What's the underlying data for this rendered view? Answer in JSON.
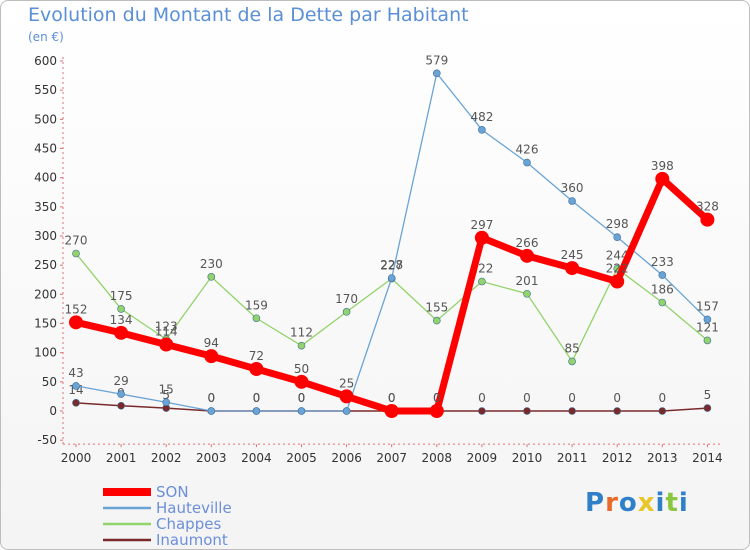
{
  "title": "Evolution du Montant de la Dette par Habitant",
  "unit": "(en €)",
  "logo": {
    "text": "Proxiti",
    "colors": [
      "#2f80c8",
      "#e86a2a",
      "#2f80c8",
      "#e8c62a",
      "#2f80c8",
      "#8ac640",
      "#2f80c8"
    ]
  },
  "chart_data": {
    "type": "line",
    "title": "Evolution du Montant de la Dette par Habitant",
    "ylabel": "(en €)",
    "xlabel": "",
    "x": [
      "2000",
      "2001",
      "2002",
      "2003",
      "2004",
      "2005",
      "2006",
      "2007",
      "2008",
      "2009",
      "2010",
      "2011",
      "2012",
      "2013",
      "2014"
    ],
    "yticks": [
      -50,
      0,
      50,
      100,
      150,
      200,
      250,
      300,
      350,
      400,
      450,
      500,
      550,
      600
    ],
    "ytick_labels": [
      "-50",
      "0",
      "50",
      "100",
      "150",
      "200",
      "250",
      "300",
      "350",
      "400",
      "450",
      "500",
      "550",
      "600"
    ],
    "ylim": [
      -50,
      600
    ],
    "grid": false,
    "legend_position": "bottom-left",
    "series": [
      {
        "name": "Inaumont",
        "color": "#7a2a2a",
        "width": 1.5,
        "marker": 3.5,
        "values": [
          14,
          9,
          5,
          0,
          0,
          0,
          0,
          0,
          0,
          0,
          0,
          0,
          0,
          0,
          5
        ],
        "labels": [
          "14",
          "9",
          "5",
          "0",
          "0",
          "0",
          "0",
          "0",
          "0",
          "0",
          "0",
          "0",
          "0",
          "0",
          "5"
        ]
      },
      {
        "name": "Chappes",
        "color": "#92d36b",
        "width": 1.3,
        "marker": 3.5,
        "values": [
          270,
          175,
          123,
          230,
          159,
          112,
          170,
          227,
          155,
          222,
          201,
          85,
          244,
          186,
          121
        ],
        "labels": [
          "270",
          "175",
          "123",
          "230",
          "159",
          "112",
          "170",
          "227",
          "155",
          "222",
          "201",
          "85",
          "244",
          "186",
          "121"
        ]
      },
      {
        "name": "Hauteville",
        "color": "#6aa3d6",
        "width": 1.3,
        "marker": 3.5,
        "values": [
          43,
          29,
          15,
          0,
          0,
          0,
          0,
          228,
          579,
          482,
          426,
          360,
          298,
          233,
          157
        ],
        "labels": [
          "43",
          "29",
          "15",
          "0",
          "0",
          "0",
          "0",
          "228",
          "579",
          "482",
          "426",
          "360",
          "298",
          "233",
          "157"
        ]
      },
      {
        "name": "SON",
        "color": "#ff0000",
        "width": 7,
        "marker": 7,
        "values": [
          152,
          134,
          114,
          94,
          72,
          50,
          25,
          0,
          0,
          297,
          266,
          245,
          222,
          398,
          328
        ],
        "labels": [
          "152",
          "134",
          "114",
          "94",
          "72",
          "50",
          "25",
          "0",
          "0",
          "297",
          "266",
          "245",
          "222",
          "398",
          "328"
        ]
      }
    ],
    "legend": [
      "SON",
      "Hauteville",
      "Chappes",
      "Inaumont"
    ]
  }
}
